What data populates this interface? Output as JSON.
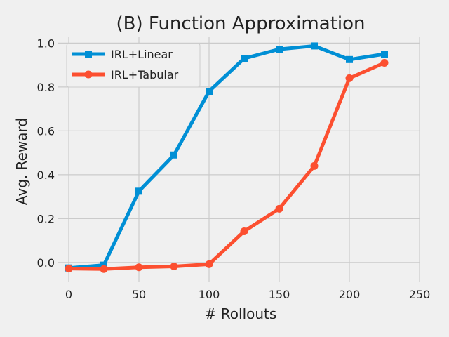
{
  "chart_data": {
    "type": "line",
    "title": "(B) Function Approximation",
    "xlabel": "# Rollouts",
    "ylabel": "Avg. Reward",
    "xlim": [
      -8,
      250
    ],
    "ylim": [
      -0.09,
      1.03
    ],
    "xticks": [
      0,
      50,
      100,
      150,
      200,
      250
    ],
    "yticks": [
      0.0,
      0.2,
      0.4,
      0.6,
      0.8,
      1.0
    ],
    "ytick_labels": [
      "0.0",
      "0.2",
      "0.4",
      "0.6",
      "0.8",
      "1.0"
    ],
    "grid": true,
    "legend_position": "top-left",
    "x": [
      0,
      25,
      50,
      75,
      100,
      125,
      150,
      175,
      200,
      225
    ],
    "series": [
      {
        "name": "IRL+Linear",
        "color": "#008fd5",
        "marker": "square",
        "values": [
          -0.025,
          -0.012,
          0.325,
          0.49,
          0.78,
          0.93,
          0.972,
          0.987,
          0.925,
          0.95
        ]
      },
      {
        "name": "IRL+Tabular",
        "color": "#fc4f30",
        "marker": "circle",
        "values": [
          -0.028,
          -0.03,
          -0.022,
          -0.018,
          -0.008,
          0.142,
          0.245,
          0.44,
          0.84,
          0.91
        ]
      }
    ]
  }
}
